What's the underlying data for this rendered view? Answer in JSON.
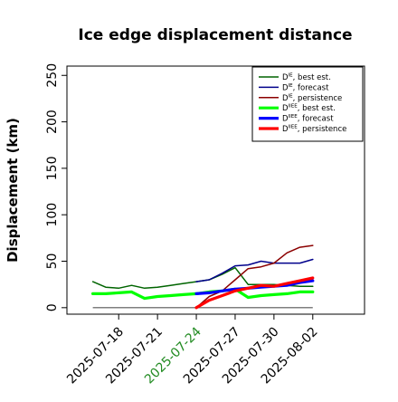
{
  "chart_data": {
    "type": "line",
    "title": "Ice edge displacement distance",
    "ylabel": "Displacement (km)",
    "xlabel": "",
    "ylim": [
      -7,
      260
    ],
    "xlim": [
      "2025-07-14",
      "2025-08-06"
    ],
    "yticks": [
      0,
      50,
      100,
      150,
      200,
      250
    ],
    "xticks": [
      "2025-07-18",
      "2025-07-21",
      "2025-07-24",
      "2025-07-27",
      "2025-07-30",
      "2025-08-02"
    ],
    "highlight_tick": "2025-07-24",
    "highlight_color": "#228B22",
    "zero_line": true,
    "grid": false,
    "legend_position": "top-right",
    "legend": [
      {
        "sym": "D",
        "sup": "IE",
        "text": ", best est."
      },
      {
        "sym": "D",
        "sup": "IE",
        "text": ", forecast"
      },
      {
        "sym": "D",
        "sup": "IE",
        "text": ", persistence"
      },
      {
        "sym": "D",
        "sup": "IIEE",
        "text": ", best est."
      },
      {
        "sym": "D",
        "sup": "IIEE",
        "text": ", forecast"
      },
      {
        "sym": "D",
        "sup": "IIEE",
        "text": ", persistence"
      }
    ],
    "series": [
      {
        "color": "#006400",
        "width": 1.5,
        "x": [
          "2025-07-16",
          "2025-07-17",
          "2025-07-18",
          "2025-07-19",
          "2025-07-20",
          "2025-07-21",
          "2025-07-22",
          "2025-07-23",
          "2025-07-24",
          "2025-07-25",
          "2025-07-26",
          "2025-07-27",
          "2025-07-28",
          "2025-07-29",
          "2025-07-30",
          "2025-07-31",
          "2025-08-01",
          "2025-08-02"
        ],
        "values": [
          28,
          22,
          21,
          24,
          21,
          22,
          24,
          26,
          28,
          30,
          36,
          43,
          25,
          25,
          25,
          24,
          23,
          23
        ]
      },
      {
        "color": "#00008B",
        "width": 1.5,
        "x": [
          "2025-07-24",
          "2025-07-25",
          "2025-07-26",
          "2025-07-27",
          "2025-07-28",
          "2025-07-29",
          "2025-07-30",
          "2025-07-31",
          "2025-08-01",
          "2025-08-02"
        ],
        "values": [
          28,
          30,
          37,
          45,
          46,
          50,
          48,
          48,
          48,
          52
        ]
      },
      {
        "color": "#8B0000",
        "width": 1.5,
        "x": [
          "2025-07-24",
          "2025-07-25",
          "2025-07-26",
          "2025-07-27",
          "2025-07-28",
          "2025-07-29",
          "2025-07-30",
          "2025-07-31",
          "2025-08-01",
          "2025-08-02"
        ],
        "values": [
          0,
          12,
          18,
          30,
          42,
          44,
          48,
          59,
          65,
          67
        ]
      },
      {
        "color": "#00FF00",
        "width": 3.2,
        "x": [
          "2025-07-16",
          "2025-07-17",
          "2025-07-18",
          "2025-07-19",
          "2025-07-20",
          "2025-07-21",
          "2025-07-22",
          "2025-07-23",
          "2025-07-24",
          "2025-07-25",
          "2025-07-26",
          "2025-07-27",
          "2025-07-28",
          "2025-07-29",
          "2025-07-30",
          "2025-07-31",
          "2025-08-01",
          "2025-08-02"
        ],
        "values": [
          15,
          15,
          16,
          17,
          10,
          12,
          13,
          14,
          15,
          17,
          18,
          20,
          11,
          13,
          14,
          15,
          17,
          17
        ]
      },
      {
        "color": "#0000FF",
        "width": 3.2,
        "x": [
          "2025-07-24",
          "2025-07-25",
          "2025-07-26",
          "2025-07-27",
          "2025-07-28",
          "2025-07-29",
          "2025-07-30",
          "2025-07-31",
          "2025-08-01",
          "2025-08-02"
        ],
        "values": [
          15,
          16,
          18,
          20,
          21,
          22,
          23,
          24,
          27,
          29
        ]
      },
      {
        "color": "#FF0000",
        "width": 3.2,
        "x": [
          "2025-07-24",
          "2025-07-25",
          "2025-07-26",
          "2025-07-27",
          "2025-07-28",
          "2025-07-29",
          "2025-07-30",
          "2025-07-31",
          "2025-08-01",
          "2025-08-02"
        ],
        "values": [
          0,
          8,
          13,
          18,
          21,
          24,
          23,
          26,
          29,
          32
        ]
      }
    ]
  }
}
